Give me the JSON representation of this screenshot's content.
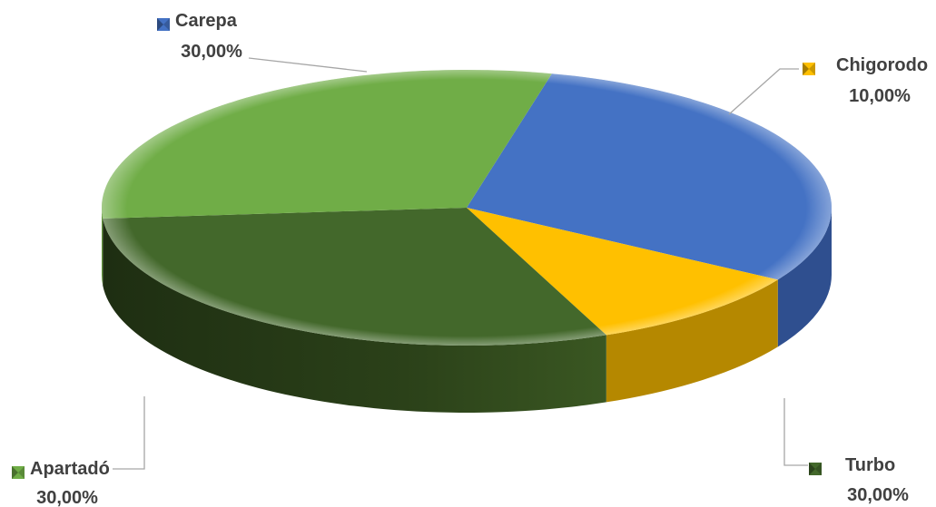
{
  "chart_data": {
    "type": "pie",
    "style": "3d",
    "title": "",
    "categories": [
      "Carepa",
      "Chigorodo",
      "Turbo",
      "Apartadó"
    ],
    "values": [
      30,
      10,
      30,
      30
    ],
    "labels": [
      "30,00%",
      "10,00%",
      "30,00%",
      "30,00%"
    ],
    "colors": [
      "#4472c4",
      "#ffc000",
      "#43682b",
      "#70ad47"
    ],
    "legend": "inline labels with markers"
  }
}
